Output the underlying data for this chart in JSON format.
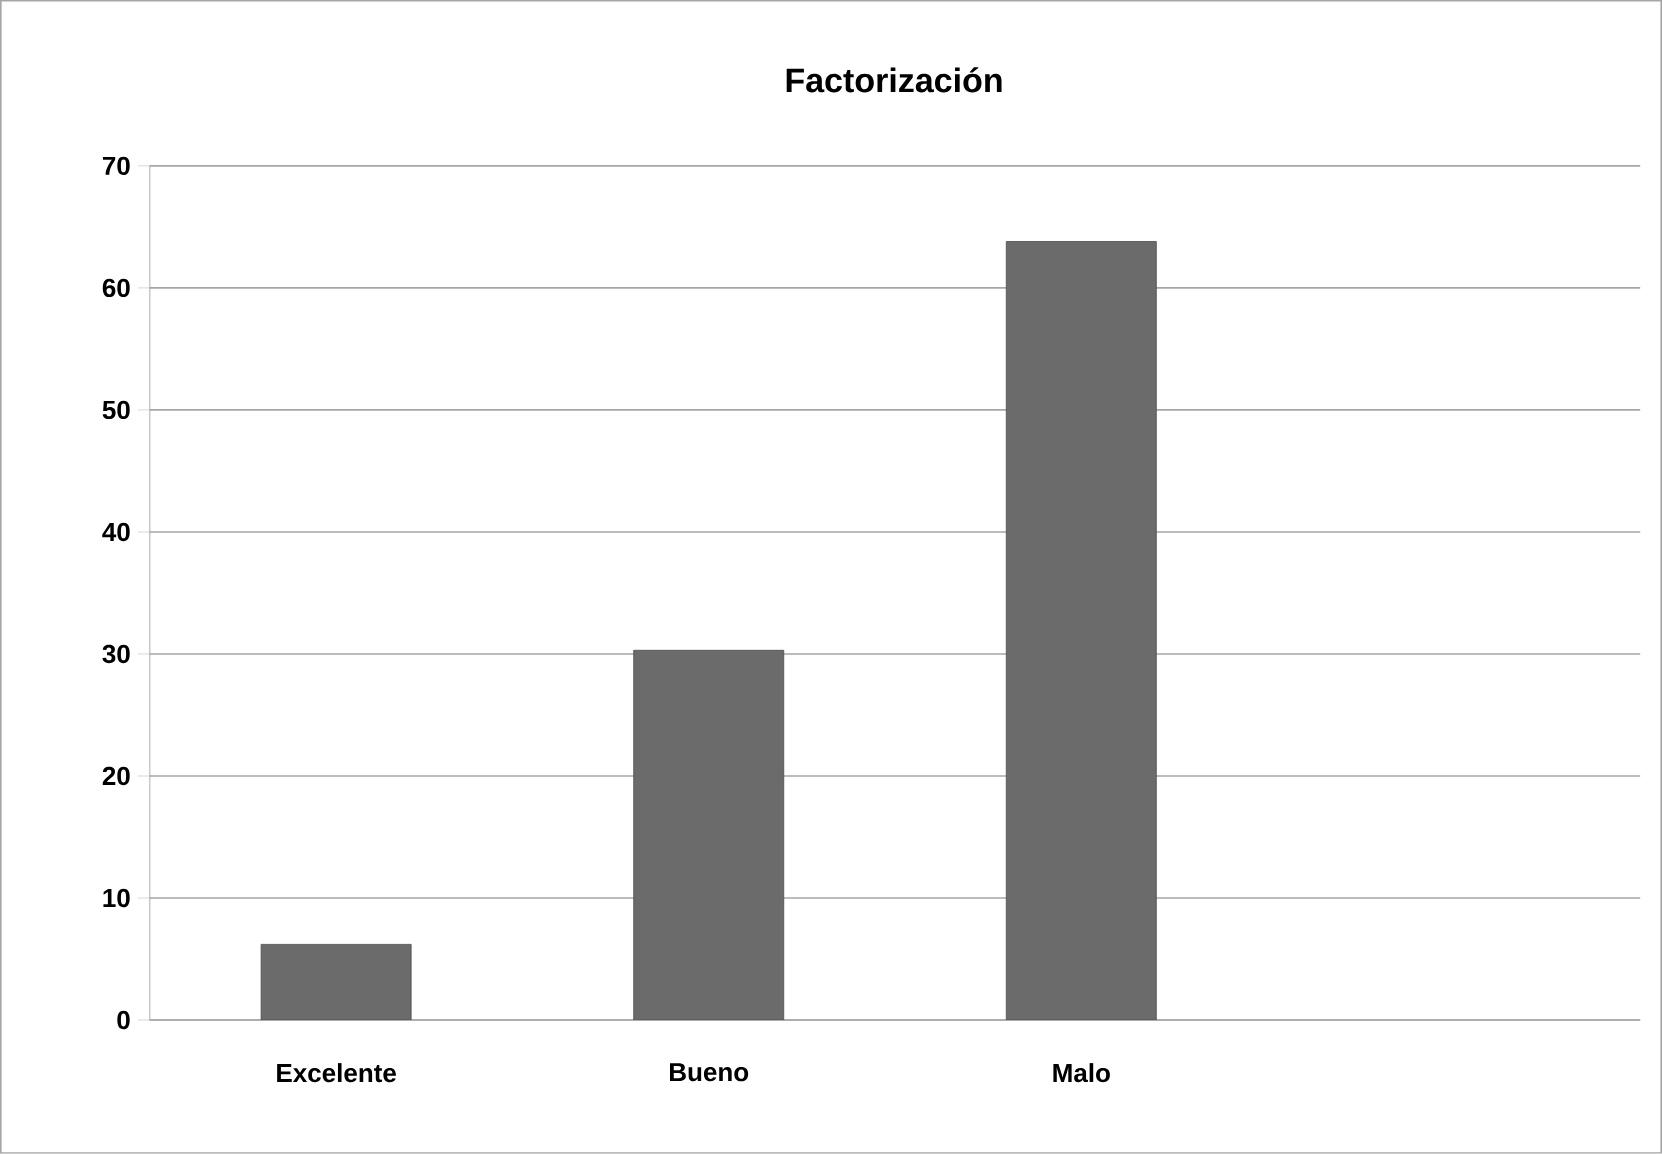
{
  "chart_data": {
    "type": "bar",
    "title": "Factorización",
    "categories": [
      "Excelente",
      "Bueno",
      "Malo",
      null
    ],
    "values": [
      6.2,
      30.3,
      63.8,
      null
    ],
    "color": "#6b6b6b",
    "ylim": [
      0,
      70
    ],
    "yticks": [
      0,
      10,
      20,
      30,
      40,
      50,
      60,
      70
    ],
    "grid": "y"
  }
}
